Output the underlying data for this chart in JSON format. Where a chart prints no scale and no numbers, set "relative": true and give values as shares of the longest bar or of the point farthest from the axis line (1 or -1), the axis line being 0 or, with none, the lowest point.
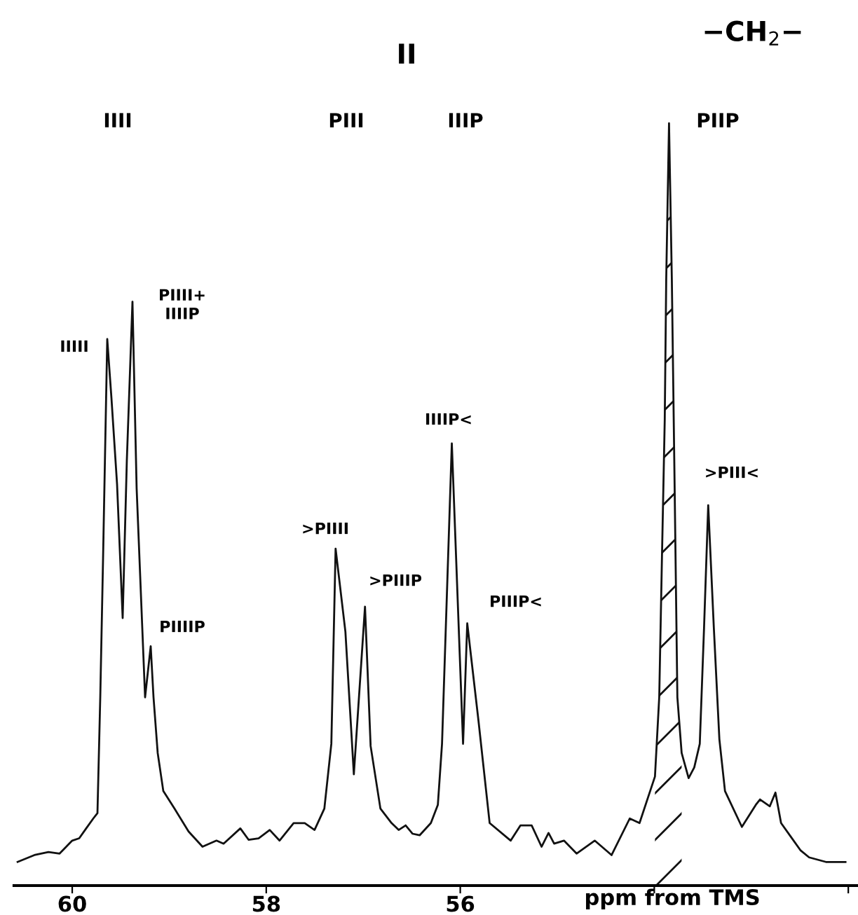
{
  "chart_data": {
    "type": "line",
    "relative": true,
    "xlabel": "ppm from TMS",
    "xlim": [
      60.6,
      51.9
    ],
    "xticks": [
      60,
      58,
      56,
      {
        "value": 54,
        "label": null
      },
      {
        "value": 52,
        "label": null
      }
    ],
    "tick_labels": "x",
    "grid": false,
    "legend": false,
    "marker": "none",
    "line_style": "solid",
    "series": [
      {
        "color": "#111111",
        "x": [
          60.563,
          60.39,
          60.245,
          60.13,
          60.0,
          59.928,
          59.856,
          59.783,
          59.74,
          59.711,
          59.682,
          59.639,
          59.596,
          59.538,
          59.48,
          59.437,
          59.379,
          59.336,
          59.249,
          59.191,
          59.162,
          59.119,
          59.061,
          58.946,
          58.801,
          58.657,
          58.513,
          58.44,
          58.267,
          58.181,
          58.079,
          57.964,
          57.863,
          57.718,
          57.603,
          57.502,
          57.401,
          57.329,
          57.285,
          57.184,
          57.097,
          56.982,
          56.924,
          56.823,
          56.708,
          56.635,
          56.563,
          56.491,
          56.419,
          56.303,
          56.231,
          56.188,
          56.087,
          55.971,
          55.928,
          55.812,
          55.697,
          55.48,
          55.379,
          55.264,
          55.162,
          55.09,
          55.032,
          54.931,
          54.801,
          54.614,
          54.44,
          54.253,
          54.152,
          53.993,
          53.949,
          53.921,
          53.892,
          53.877,
          53.848,
          53.819,
          53.79,
          53.762,
          53.718,
          53.646,
          53.588,
          53.531,
          53.487,
          53.444,
          53.386,
          53.329,
          53.271,
          53.097,
          52.953,
          52.91,
          52.809,
          52.751,
          52.693,
          52.592,
          52.491,
          52.404,
          52.231,
          52.029
        ],
        "values": [
          0.031,
          0.04,
          0.044,
          0.042,
          0.059,
          0.062,
          0.075,
          0.088,
          0.095,
          0.247,
          0.43,
          0.717,
          0.64,
          0.527,
          0.351,
          0.558,
          0.766,
          0.521,
          0.247,
          0.314,
          0.247,
          0.174,
          0.124,
          0.101,
          0.071,
          0.051,
          0.059,
          0.055,
          0.075,
          0.06,
          0.062,
          0.073,
          0.059,
          0.082,
          0.082,
          0.073,
          0.101,
          0.186,
          0.442,
          0.333,
          0.146,
          0.366,
          0.183,
          0.101,
          0.082,
          0.073,
          0.079,
          0.068,
          0.066,
          0.082,
          0.106,
          0.186,
          0.58,
          0.186,
          0.344,
          0.216,
          0.082,
          0.059,
          0.079,
          0.079,
          0.051,
          0.069,
          0.055,
          0.059,
          0.042,
          0.059,
          0.04,
          0.088,
          0.082,
          0.143,
          0.247,
          0.43,
          0.612,
          0.795,
          1.0,
          0.795,
          0.521,
          0.247,
          0.174,
          0.141,
          0.155,
          0.186,
          0.338,
          0.499,
          0.338,
          0.192,
          0.124,
          0.077,
          0.106,
          0.113,
          0.104,
          0.122,
          0.082,
          0.064,
          0.046,
          0.037,
          0.031,
          0.031
        ]
      },
      {
        "type": "area",
        "color": "#111111",
        "x": [
          53.993,
          53.949,
          53.921,
          53.892,
          53.877,
          53.848,
          53.819,
          53.79,
          53.762,
          53.718
        ],
        "values": [
          0.143,
          0.247,
          0.43,
          0.612,
          0.795,
          1.0,
          0.795,
          0.521,
          0.247,
          0.174
        ]
      }
    ],
    "annotations": [
      "II",
      "−CH$_{2}$−",
      "IIII",
      "PIII",
      "IIIP",
      "PIIP",
      "IIIII",
      "PIIII+\nIIIIP",
      "PIIIIP",
      ">PIIII",
      ">PIIIP",
      "IIIIP<",
      "PIIIP<",
      ">PIII<"
    ]
  }
}
